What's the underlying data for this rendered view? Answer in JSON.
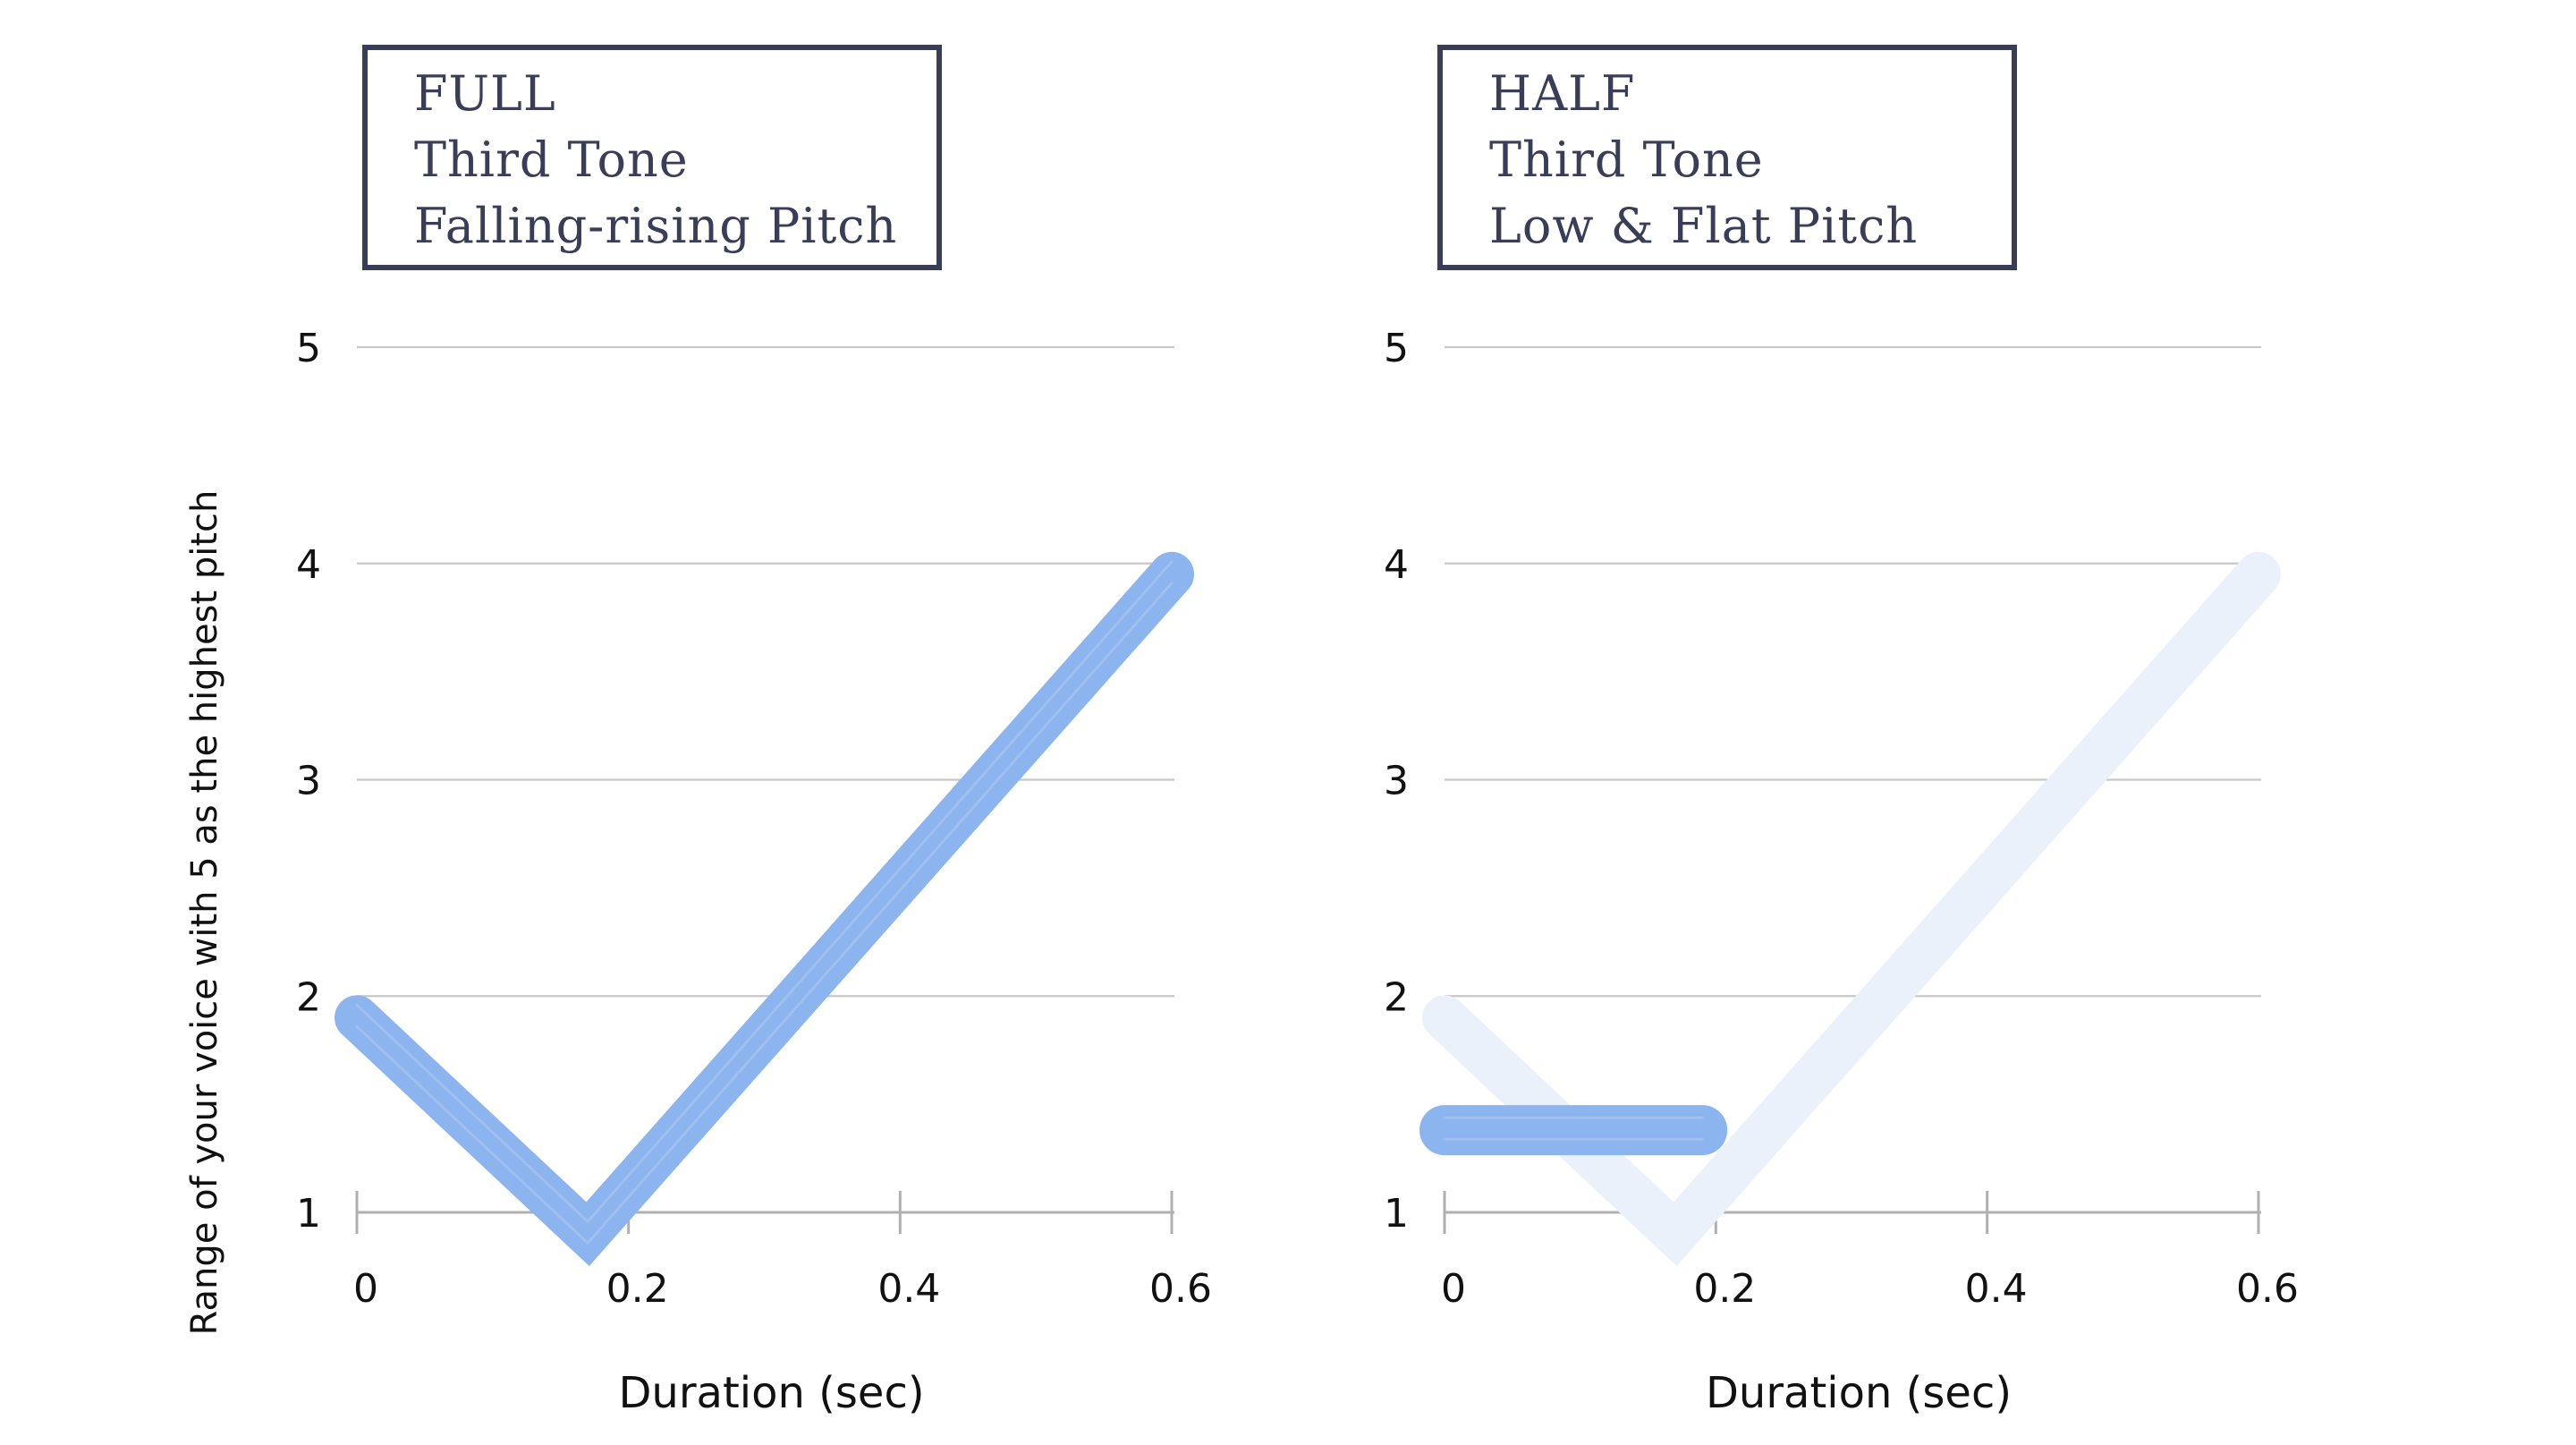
{
  "colors": {
    "stroke": "#8cb4ee",
    "ghost": "#eaf1fb",
    "grid": "#c8c8c8",
    "axis": "#b0b0b0",
    "box_border": "#3a3d57",
    "box_text": "#3a3d57"
  },
  "ylabel": "Range of your voice with 5 as the highest pitch",
  "chart_data": [
    {
      "type": "line",
      "panel": "left",
      "title_lines": [
        "FULL",
        "Third Tone",
        "Falling-rising Pitch"
      ],
      "xlabel": "Duration (sec)",
      "ylabel": "Range of your voice with 5 as the highest pitch",
      "x_ticks": [
        "0",
        "0.2",
        "0.4",
        "0.6"
      ],
      "y_ticks": [
        "1",
        "2",
        "3",
        "4",
        "5"
      ],
      "xlim": [
        0,
        0.6
      ],
      "ylim": [
        1,
        5
      ],
      "grid": true,
      "series": [
        {
          "x": [
            0,
            0.17,
            0.6
          ],
          "y": [
            1.9,
            0.9,
            3.95
          ],
          "style": "brush"
        }
      ]
    },
    {
      "type": "line",
      "panel": "right",
      "title_lines": [
        "HALF",
        "Third Tone",
        "Low & Flat Pitch"
      ],
      "xlabel": "Duration (sec)",
      "ylabel": "",
      "x_ticks": [
        "0",
        "0.2",
        "0.4",
        "0.6"
      ],
      "y_ticks": [
        "1",
        "2",
        "3",
        "4",
        "5"
      ],
      "xlim": [
        0,
        0.6
      ],
      "ylim": [
        1,
        5
      ],
      "grid": true,
      "series": [
        {
          "x": [
            0,
            0.17,
            0.6
          ],
          "y": [
            1.9,
            0.9,
            3.95
          ],
          "style": "ghost"
        },
        {
          "x": [
            0,
            0.19
          ],
          "y": [
            1.38,
            1.38
          ],
          "style": "brush"
        }
      ]
    }
  ]
}
